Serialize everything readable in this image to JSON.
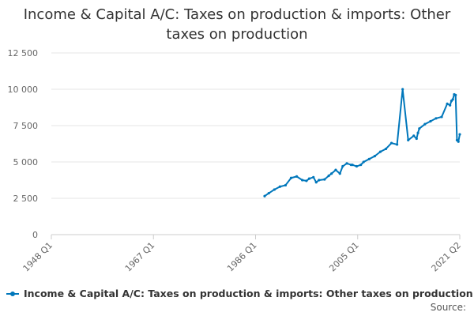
{
  "colors": {
    "series": "#0077bb",
    "grid": "#e6e6e6",
    "axis": "#cccccc",
    "tick_label": "#666666"
  },
  "chart_data": {
    "type": "line",
    "title_lines": [
      "Income & Capital A/C: Taxes on production & imports: Other",
      "taxes on production"
    ],
    "xlabel": "",
    "ylabel": "",
    "x_tick_labels": [
      "1948 Q1",
      "1967 Q1",
      "1986 Q1",
      "2005 Q1",
      "2021 Q2"
    ],
    "y_tick_labels": [
      "0",
      "2 500",
      "5 000",
      "7 500",
      "10 000",
      "12 500"
    ],
    "y_ticks": [
      0,
      2500,
      5000,
      7500,
      10000,
      12500
    ],
    "ylim": [
      0,
      12500
    ],
    "xlim": [
      1948.0,
      2021.25
    ],
    "grid": true,
    "legend_position": "bottom",
    "source_label": "Source:",
    "series": [
      {
        "name": "Income & Capital A/C: Taxes on production & imports: Other taxes on production",
        "x": [
          1986.25,
          1987,
          1988,
          1989,
          1990,
          1991,
          1992,
          1993,
          1993.75,
          1994.25,
          1995,
          1995.5,
          1996,
          1997,
          1997.75,
          1998.25,
          1999,
          1999.75,
          2000.25,
          2001,
          2001.75,
          2002,
          2002.75,
          2003.5,
          2004,
          2005,
          2006,
          2007,
          2008,
          2009,
          2010,
          2011,
          2012,
          2013,
          2013.5,
          2013.75,
          2014,
          2015,
          2016,
          2017,
          2018,
          2019,
          2019.5,
          2019.75,
          2020,
          2020.25,
          2020.5,
          2020.75,
          2021,
          2021.25
        ],
        "y": [
          2650,
          2850,
          3100,
          3300,
          3400,
          3900,
          4000,
          3750,
          3700,
          3850,
          3950,
          3600,
          3750,
          3800,
          4050,
          4200,
          4450,
          4200,
          4700,
          4900,
          4800,
          4800,
          4700,
          4800,
          5000,
          5200,
          5400,
          5700,
          5900,
          6300,
          6200,
          10000,
          6500,
          6800,
          6600,
          7000,
          7300,
          7600,
          7800,
          8000,
          8100,
          9000,
          8900,
          9200,
          9300,
          9650,
          9600,
          6500,
          6400,
          6900
        ]
      }
    ]
  }
}
